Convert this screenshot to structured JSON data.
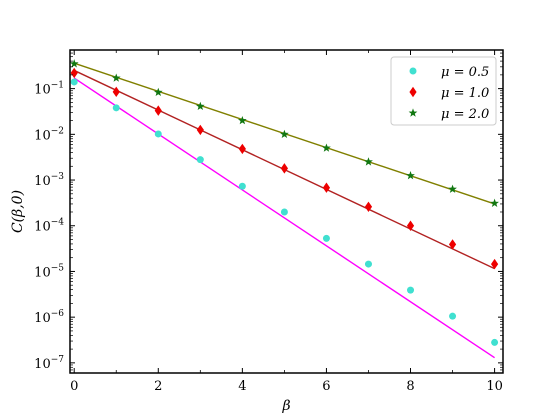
{
  "chart_data": {
    "type": "scatter",
    "xlabel": "β",
    "ylabel": "C(β,0)",
    "xlim": [
      -0.1,
      10.2
    ],
    "ylim": [
      6e-08,
      0.7
    ],
    "yscale": "log",
    "grid": false,
    "legend_position": "top-right",
    "x_ticks": [
      0,
      2,
      4,
      6,
      8,
      10
    ],
    "y_ticks": [
      {
        "value": 1e-07,
        "base": "10",
        "exp": "-7"
      },
      {
        "value": 1e-06,
        "base": "10",
        "exp": "-6"
      },
      {
        "value": 1e-05,
        "base": "10",
        "exp": "-5"
      },
      {
        "value": 0.0001,
        "base": "10",
        "exp": "-4"
      },
      {
        "value": 0.001,
        "base": "10",
        "exp": "-3"
      },
      {
        "value": 0.01,
        "base": "10",
        "exp": "-2"
      },
      {
        "value": 0.1,
        "base": "10",
        "exp": "-1"
      }
    ],
    "series": [
      {
        "name": "μ = 0.5",
        "marker": "circle",
        "marker_color": "#40e0d0",
        "line_color": "#ff00ff",
        "x": [
          0,
          1,
          2,
          3,
          4,
          5,
          6,
          7,
          8,
          9,
          10
        ],
        "y": [
          0.14,
          0.038,
          0.0102,
          0.0028,
          0.00073,
          0.0002,
          5.3e-05,
          1.45e-05,
          3.9e-06,
          1.05e-06,
          2.8e-07
        ],
        "fit": {
          "x": [
            0,
            10
          ],
          "y": [
            0.17,
            1.3e-07
          ]
        }
      },
      {
        "name": "μ = 1.0",
        "marker": "diamond",
        "marker_color": "#ee0000",
        "line_color": "#b22222",
        "x": [
          0,
          1,
          2,
          3,
          4,
          5,
          6,
          7,
          8,
          9,
          10
        ],
        "y": [
          0.22,
          0.085,
          0.033,
          0.0125,
          0.0048,
          0.0018,
          0.00068,
          0.00026,
          0.0001,
          3.9e-05,
          1.45e-05
        ],
        "fit": {
          "x": [
            0,
            10
          ],
          "y": [
            0.25,
            1.15e-05
          ]
        }
      },
      {
        "name": "μ = 2.0",
        "marker": "star",
        "marker_color": "#117711",
        "line_color": "#808000",
        "x": [
          0,
          1,
          2,
          3,
          4,
          5,
          6,
          7,
          8,
          9,
          10
        ],
        "y": [
          0.35,
          0.17,
          0.083,
          0.041,
          0.02,
          0.01,
          0.005,
          0.0025,
          0.00125,
          0.00063,
          0.00031
        ],
        "fit": {
          "x": [
            0,
            10
          ],
          "y": [
            0.36,
            0.0003
          ]
        }
      }
    ]
  }
}
